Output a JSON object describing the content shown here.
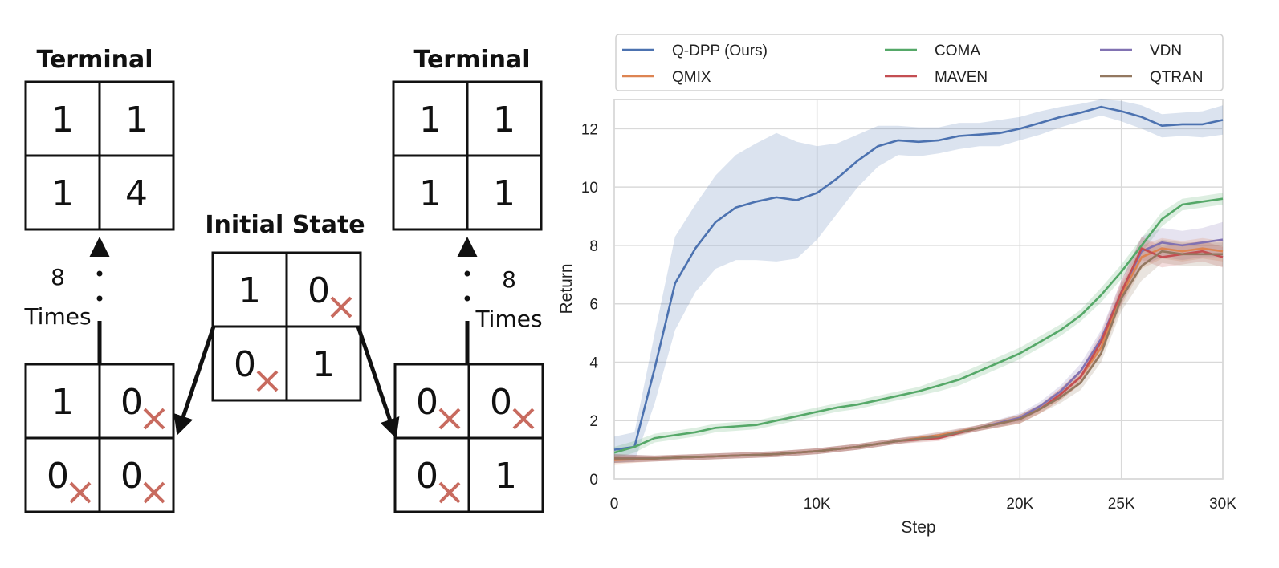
{
  "diagram": {
    "terminal_left": {
      "title": "Terminal",
      "cells": [
        "1",
        "1",
        "1",
        "4"
      ]
    },
    "terminal_right": {
      "title": "Terminal",
      "cells": [
        "1",
        "1",
        "1",
        "1"
      ]
    },
    "initial": {
      "title": "Initial State",
      "cells": [
        "1",
        "0",
        "0",
        "1"
      ],
      "crossed": [
        false,
        true,
        true,
        false
      ]
    },
    "bottom_left": {
      "cells": [
        "1",
        "0",
        "0",
        "0"
      ],
      "crossed": [
        false,
        true,
        true,
        true
      ]
    },
    "bottom_right": {
      "cells": [
        "0",
        "0",
        "0",
        "1"
      ],
      "crossed": [
        true,
        true,
        true,
        false
      ]
    },
    "repeat_label_left": {
      "count": "8",
      "word": "Times"
    },
    "repeat_label_right": {
      "count": "8",
      "word": "Times"
    },
    "cross_color": "#c86b5f"
  },
  "chart_data": {
    "type": "line",
    "xlabel": "Step",
    "ylabel": "Return",
    "xlim": [
      0,
      30000
    ],
    "ylim": [
      0,
      13
    ],
    "xticks": [
      0,
      10000,
      20000,
      25000,
      30000
    ],
    "xtick_labels": [
      "0",
      "10K",
      "20K",
      "25K",
      "30K"
    ],
    "yticks": [
      0,
      2,
      4,
      6,
      8,
      10,
      12
    ],
    "ytick_labels": [
      "0",
      "2",
      "4",
      "6",
      "8",
      "10",
      "12"
    ],
    "grid": true,
    "legend_position": "top",
    "legend_columns": [
      [
        "Q-DPP (Ours)",
        "QMIX"
      ],
      [
        "COMA",
        "MAVEN"
      ],
      [
        "VDN",
        "QTRAN"
      ]
    ],
    "series": [
      {
        "name": "Q-DPP (Ours)",
        "color": "#4c72b0",
        "x": [
          0,
          1000,
          2000,
          3000,
          4000,
          5000,
          6000,
          7000,
          8000,
          9000,
          10000,
          11000,
          12000,
          13000,
          14000,
          15000,
          16000,
          17000,
          18000,
          19000,
          20000,
          21000,
          22000,
          23000,
          24000,
          25000,
          26000,
          27000,
          28000,
          29000,
          30000
        ],
        "y": [
          1.0,
          1.1,
          3.8,
          6.7,
          7.9,
          8.8,
          9.3,
          9.5,
          9.65,
          9.55,
          9.8,
          10.3,
          10.9,
          11.4,
          11.6,
          11.55,
          11.6,
          11.75,
          11.8,
          11.85,
          12.0,
          12.2,
          12.4,
          12.55,
          12.75,
          12.6,
          12.4,
          12.1,
          12.15,
          12.15,
          12.3
        ],
        "band": [
          0.45,
          0.5,
          1.2,
          1.6,
          1.5,
          1.6,
          1.8,
          2.0,
          2.2,
          2.0,
          1.6,
          1.2,
          0.9,
          0.7,
          0.5,
          0.5,
          0.45,
          0.45,
          0.4,
          0.45,
          0.4,
          0.4,
          0.35,
          0.3,
          0.3,
          0.35,
          0.4,
          0.4,
          0.4,
          0.45,
          0.5
        ]
      },
      {
        "name": "COMA",
        "color": "#55a868",
        "x": [
          0,
          1000,
          2000,
          3000,
          4000,
          5000,
          6000,
          7000,
          8000,
          9000,
          10000,
          11000,
          12000,
          13000,
          14000,
          15000,
          16000,
          17000,
          18000,
          19000,
          20000,
          21000,
          22000,
          23000,
          24000,
          25000,
          26000,
          27000,
          28000,
          29000,
          30000
        ],
        "y": [
          0.9,
          1.1,
          1.4,
          1.5,
          1.6,
          1.75,
          1.8,
          1.85,
          2.0,
          2.15,
          2.3,
          2.45,
          2.55,
          2.7,
          2.85,
          3.0,
          3.2,
          3.4,
          3.7,
          4.0,
          4.3,
          4.7,
          5.1,
          5.6,
          6.3,
          7.1,
          8.0,
          8.9,
          9.4,
          9.5,
          9.6
        ],
        "band": [
          0.2,
          0.2,
          0.15,
          0.15,
          0.15,
          0.15,
          0.15,
          0.15,
          0.15,
          0.15,
          0.15,
          0.15,
          0.15,
          0.15,
          0.15,
          0.15,
          0.2,
          0.2,
          0.2,
          0.2,
          0.2,
          0.2,
          0.2,
          0.2,
          0.25,
          0.25,
          0.25,
          0.25,
          0.2,
          0.2,
          0.2
        ]
      },
      {
        "name": "VDN",
        "color": "#8172b2",
        "x": [
          0,
          2000,
          4000,
          6000,
          8000,
          10000,
          12000,
          14000,
          16000,
          18000,
          20000,
          21000,
          22000,
          23000,
          24000,
          25000,
          26000,
          27000,
          28000,
          29000,
          30000
        ],
        "y": [
          0.7,
          0.7,
          0.75,
          0.8,
          0.85,
          0.95,
          1.1,
          1.3,
          1.5,
          1.75,
          2.1,
          2.5,
          3.0,
          3.7,
          4.8,
          6.4,
          7.8,
          8.1,
          8.0,
          8.1,
          8.2
        ],
        "band": [
          0.15,
          0.1,
          0.1,
          0.1,
          0.1,
          0.1,
          0.1,
          0.1,
          0.1,
          0.1,
          0.15,
          0.15,
          0.2,
          0.25,
          0.3,
          0.4,
          0.5,
          0.5,
          0.5,
          0.5,
          0.6
        ]
      },
      {
        "name": "QMIX",
        "color": "#dd8452",
        "x": [
          0,
          2000,
          4000,
          6000,
          8000,
          10000,
          12000,
          14000,
          16000,
          18000,
          20000,
          21000,
          22000,
          23000,
          24000,
          25000,
          26000,
          27000,
          28000,
          29000,
          30000
        ],
        "y": [
          0.65,
          0.7,
          0.75,
          0.8,
          0.85,
          0.95,
          1.1,
          1.3,
          1.5,
          1.75,
          2.05,
          2.4,
          2.9,
          3.5,
          4.5,
          6.3,
          7.6,
          7.9,
          7.8,
          7.9,
          7.8
        ],
        "band": [
          0.15,
          0.1,
          0.1,
          0.1,
          0.1,
          0.1,
          0.1,
          0.1,
          0.1,
          0.1,
          0.15,
          0.15,
          0.2,
          0.25,
          0.3,
          0.4,
          0.4,
          0.35,
          0.35,
          0.35,
          0.35
        ]
      },
      {
        "name": "MAVEN",
        "color": "#c44e52",
        "x": [
          0,
          2000,
          4000,
          6000,
          8000,
          10000,
          12000,
          14000,
          16000,
          18000,
          20000,
          21000,
          22000,
          23000,
          24000,
          25000,
          26000,
          27000,
          28000,
          29000,
          30000
        ],
        "y": [
          0.7,
          0.7,
          0.75,
          0.8,
          0.85,
          0.95,
          1.1,
          1.3,
          1.4,
          1.75,
          2.05,
          2.4,
          2.9,
          3.5,
          4.7,
          6.4,
          7.9,
          7.6,
          7.7,
          7.8,
          7.6
        ],
        "band": [
          0.15,
          0.1,
          0.1,
          0.1,
          0.1,
          0.1,
          0.1,
          0.1,
          0.1,
          0.1,
          0.15,
          0.15,
          0.2,
          0.25,
          0.3,
          0.4,
          0.4,
          0.35,
          0.35,
          0.35,
          0.35
        ]
      },
      {
        "name": "QTRAN",
        "color": "#937860",
        "x": [
          0,
          2000,
          4000,
          6000,
          8000,
          10000,
          12000,
          14000,
          16000,
          18000,
          20000,
          21000,
          22000,
          23000,
          24000,
          25000,
          26000,
          27000,
          28000,
          29000,
          30000
        ],
        "y": [
          0.7,
          0.7,
          0.75,
          0.8,
          0.85,
          0.95,
          1.1,
          1.3,
          1.45,
          1.75,
          2.05,
          2.4,
          2.8,
          3.3,
          4.3,
          6.2,
          7.3,
          7.8,
          7.7,
          7.7,
          7.7
        ],
        "band": [
          0.15,
          0.1,
          0.1,
          0.1,
          0.1,
          0.1,
          0.1,
          0.1,
          0.1,
          0.1,
          0.15,
          0.15,
          0.2,
          0.25,
          0.3,
          0.45,
          0.5,
          0.4,
          0.4,
          0.4,
          0.4
        ]
      }
    ]
  }
}
